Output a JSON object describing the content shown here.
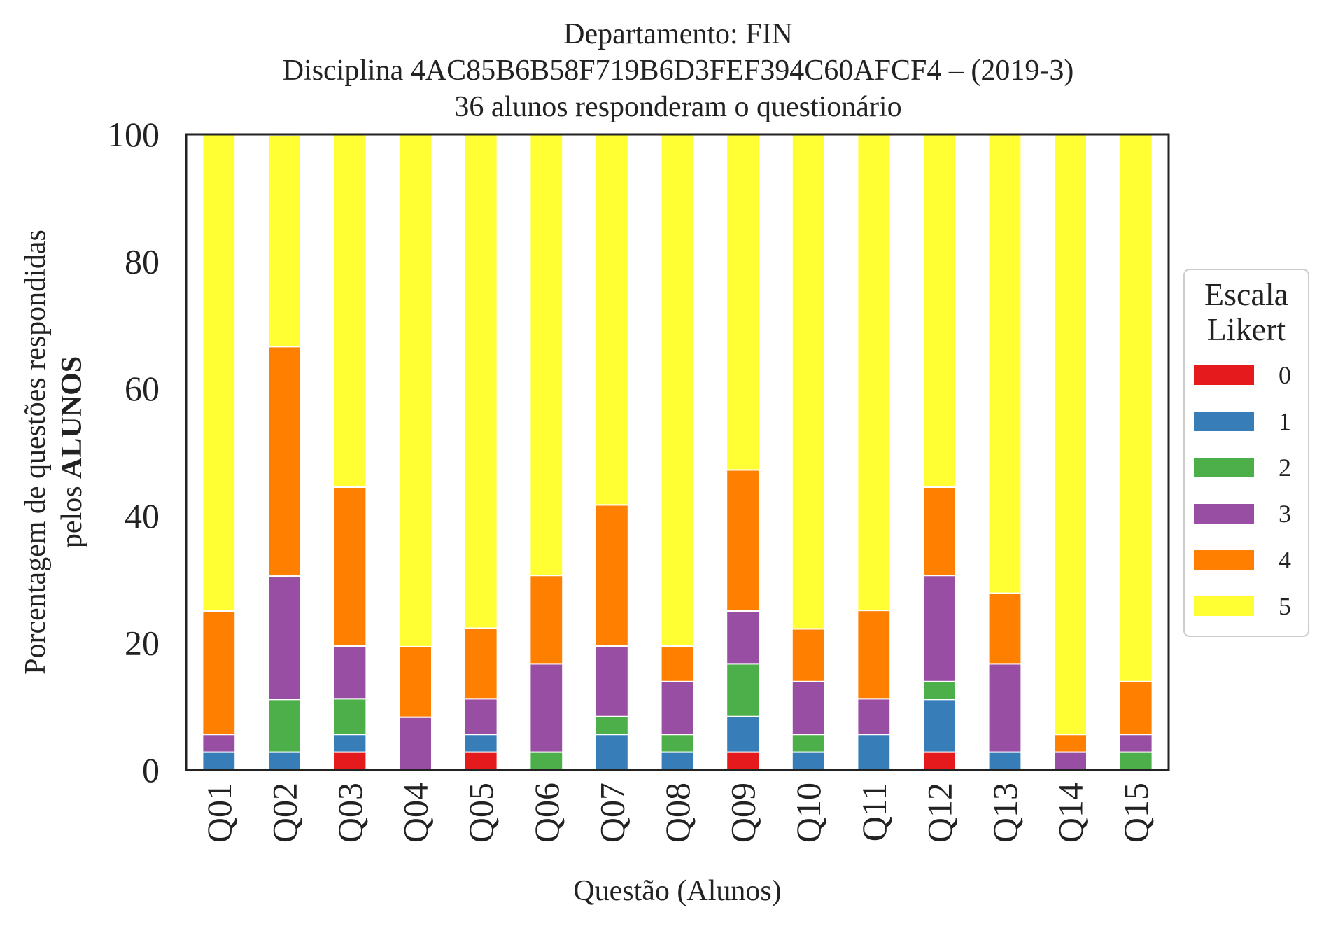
{
  "chart_data": {
    "type": "bar",
    "stacked": true,
    "title_lines": [
      "Departamento: FIN",
      "Disciplina 4AC85B6B58F719B6D3FEF394C60AFCF4 – (2019-3)",
      "36 alunos responderam o questionário"
    ],
    "xlabel": "Questão (Alunos)",
    "ylabel_line1": "Porcentagem de questões respondidas",
    "ylabel_line2_prefix": "pelos ",
    "ylabel_line2_bold": "ALUNOS",
    "ylim": [
      0,
      100
    ],
    "yticks": [
      "0",
      "20",
      "40",
      "60",
      "80",
      "100"
    ],
    "grid": false,
    "legend": {
      "placement": "right, outside",
      "title_lines": [
        "Escala",
        "Likert"
      ]
    },
    "categories": [
      "Q01",
      "Q02",
      "Q03",
      "Q04",
      "Q05",
      "Q06",
      "Q07",
      "Q08",
      "Q09",
      "Q10",
      "Q11",
      "Q12",
      "Q13",
      "Q14",
      "Q15"
    ],
    "series": [
      {
        "name": "0",
        "color": "#e41a1c",
        "values": [
          0,
          0,
          2.8,
          0,
          2.8,
          0,
          0,
          0,
          2.8,
          0,
          0,
          2.8,
          0,
          0,
          0
        ]
      },
      {
        "name": "1",
        "color": "#377eb8",
        "values": [
          2.8,
          2.8,
          2.8,
          0,
          2.8,
          0,
          5.6,
          2.8,
          5.6,
          2.8,
          5.6,
          8.3,
          2.8,
          0,
          0
        ]
      },
      {
        "name": "2",
        "color": "#4daf4a",
        "values": [
          0,
          8.3,
          5.6,
          0,
          0,
          2.8,
          2.8,
          2.8,
          8.3,
          2.8,
          0,
          2.8,
          0,
          0,
          2.8
        ]
      },
      {
        "name": "3",
        "color": "#984ea3",
        "values": [
          2.8,
          19.4,
          8.3,
          8.3,
          5.6,
          13.9,
          11.1,
          8.3,
          8.3,
          8.3,
          5.6,
          16.7,
          13.9,
          2.8,
          2.8
        ]
      },
      {
        "name": "4",
        "color": "#ff7f00",
        "values": [
          19.4,
          36.1,
          25.0,
          11.1,
          11.1,
          13.9,
          22.2,
          5.6,
          22.2,
          8.3,
          13.9,
          13.9,
          11.1,
          2.8,
          8.3
        ]
      },
      {
        "name": "5",
        "color": "#ffff33",
        "values": [
          75.0,
          33.3,
          55.6,
          80.6,
          77.8,
          69.4,
          58.3,
          80.6,
          52.8,
          77.8,
          75.0,
          55.6,
          72.2,
          94.4,
          86.1
        ]
      }
    ]
  }
}
